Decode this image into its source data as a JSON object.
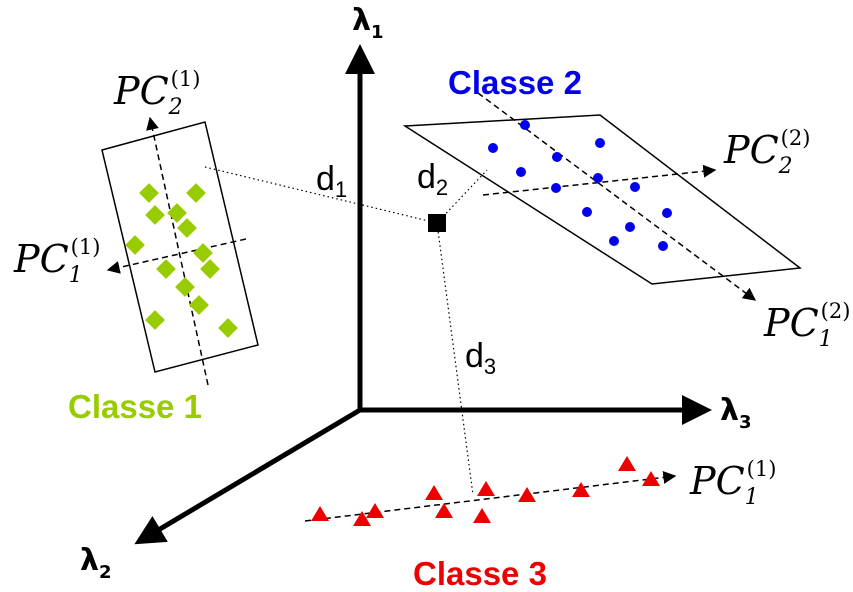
{
  "axes": {
    "l1": {
      "symbol": "λ",
      "sub": "1"
    },
    "l2": {
      "symbol": "λ",
      "sub": "2"
    },
    "l3": {
      "symbol": "λ",
      "sub": "3"
    }
  },
  "classes": {
    "c1": {
      "label": "Classe 1",
      "color": "#99cc00"
    },
    "c2": {
      "label": "Classe 2",
      "color": "#0000ee"
    },
    "c3": {
      "label": "Classe 3",
      "color": "#ee0000"
    }
  },
  "pc_labels": {
    "c1_pc2": {
      "main": "PC",
      "sub": "2",
      "sup": "(1)"
    },
    "c1_pc1": {
      "main": "PC",
      "sub": "1",
      "sup": "(1)"
    },
    "c2_pc2": {
      "main": "PC",
      "sub": "2",
      "sup": "(2)"
    },
    "c2_pc1": {
      "main": "PC",
      "sub": "1",
      "sup": "(2)"
    },
    "c3_pc1": {
      "main": "PC",
      "sub": "1",
      "sup": "(1)"
    }
  },
  "distances": {
    "d1": {
      "main": "d",
      "sub": "1"
    },
    "d2": {
      "main": "d",
      "sub": "2"
    },
    "d3": {
      "main": "d",
      "sub": "3"
    }
  },
  "colors": {
    "axis": "#000000",
    "query_point": "#000000"
  }
}
